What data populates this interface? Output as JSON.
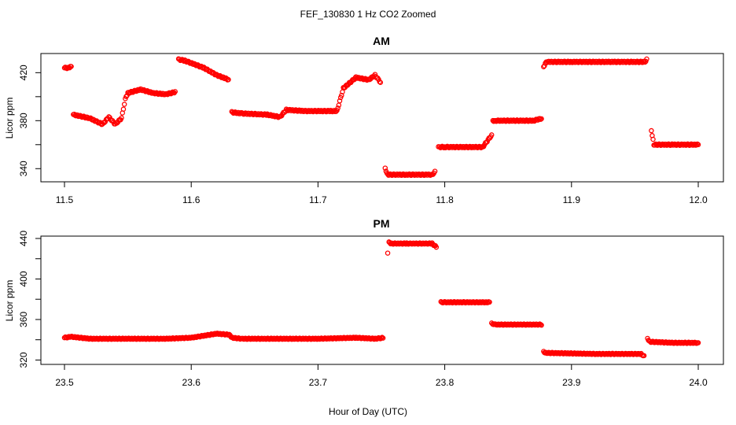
{
  "figure": {
    "suptitle": "FEF_130830  1 Hz CO2 Zoomed",
    "xlabel": "Hour of Day (UTC)"
  },
  "chart_data": [
    {
      "type": "scatter",
      "title": "AM",
      "xlabel": "",
      "ylabel": "Licor ppm",
      "marker_color": "#ff0000",
      "marker": "open-circle",
      "xlim": [
        11.5,
        12.0
      ],
      "ylim": [
        331,
        434
      ],
      "xticks": [
        "11.5",
        "11.6",
        "11.7",
        "11.8",
        "11.9",
        "12.0"
      ],
      "yticks": [
        "340",
        "380",
        "420"
      ],
      "series": [
        {
          "x": [
            11.5,
            11.504,
            11.506,
            11.507,
            11.52,
            11.53,
            11.535,
            11.54,
            11.545,
            11.548,
            11.55,
            11.56,
            11.57,
            11.58,
            11.588,
            11.59,
            11.595,
            11.61,
            11.62,
            11.63,
            11.632,
            11.64,
            11.66,
            11.67,
            11.675,
            11.69,
            11.71,
            11.715,
            11.72,
            11.73,
            11.74,
            11.745,
            11.75,
            11.752,
            11.753,
            11.755,
            11.77,
            11.79,
            11.793,
            11.795,
            11.796,
            11.8,
            11.83,
            11.837,
            11.838,
            11.84,
            11.87,
            11.877,
            11.878,
            11.88,
            11.9,
            11.93,
            11.958,
            11.96,
            11.962,
            11.963,
            11.965,
            11.98,
            12.0
          ],
          "y": [
            424,
            424,
            426,
            385,
            382,
            377,
            383,
            377,
            382,
            398,
            403,
            406,
            403,
            402,
            404,
            431,
            430,
            424,
            418,
            414,
            387,
            386,
            385,
            383,
            389,
            388,
            388,
            388,
            407,
            416,
            414,
            418,
            411,
            380,
            340,
            335,
            335,
            335,
            338,
            358,
            358,
            358,
            358,
            368,
            380,
            380,
            380,
            382,
            425,
            429,
            429,
            429,
            429,
            432,
            410,
            372,
            360,
            360,
            360
          ]
        }
      ]
    },
    {
      "type": "scatter",
      "title": "PM",
      "xlabel": "",
      "ylabel": "Licor ppm",
      "marker_color": "#ff0000",
      "marker": "open-circle",
      "xlim": [
        23.5,
        24.0
      ],
      "ylim": [
        318,
        440
      ],
      "xticks": [
        "23.5",
        "23.6",
        "23.7",
        "23.8",
        "23.9",
        "24.0"
      ],
      "yticks": [
        "320",
        "360",
        "400",
        "440"
      ],
      "series": [
        {
          "x": [
            23.5,
            23.505,
            23.52,
            23.55,
            23.58,
            23.6,
            23.62,
            23.63,
            23.632,
            23.64,
            23.68,
            23.7,
            23.73,
            23.745,
            23.752,
            23.753,
            23.754,
            23.755,
            23.756,
            23.758,
            23.77,
            23.79,
            23.794,
            23.796,
            23.797,
            23.8,
            23.83,
            23.836,
            23.837,
            23.84,
            23.87,
            23.877,
            23.878,
            23.88,
            23.92,
            23.955,
            23.958,
            23.96,
            23.962,
            23.98,
            24.0
          ],
          "y": [
            342,
            343,
            341,
            341,
            341,
            342,
            346,
            345,
            342,
            341,
            341,
            341,
            342,
            341,
            342,
            369,
            397,
            425,
            436,
            435,
            435,
            435,
            431,
            399,
            377,
            377,
            377,
            377,
            356,
            355,
            355,
            355,
            328,
            327,
            326,
            326,
            323,
            341,
            338,
            337,
            337
          ]
        }
      ]
    }
  ]
}
